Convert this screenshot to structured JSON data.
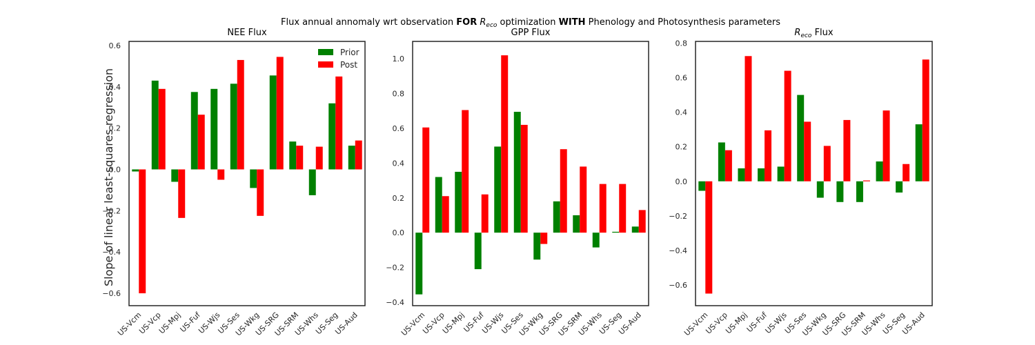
{
  "figure": {
    "suptitle": {
      "pre": "Flux annual annomaly wrt observation ",
      "bold1": "FOR",
      "math_base": "R",
      "math_sub": "eco",
      "mid": " optimization ",
      "bold2": "WITH",
      "post": " Phenology and Photosynthesis parameters"
    },
    "ylabel": "Slope of linear least-squares regression"
  },
  "colors": {
    "prior": "#008000",
    "post": "#ff0000"
  },
  "chart_data": [
    {
      "type": "bar",
      "title": "NEE Flux",
      "categories": [
        "US-Vcm",
        "US-Vcp",
        "US-Mpj",
        "US-Fuf",
        "US-Wjs",
        "US-Ses",
        "US-Wkg",
        "US-SRG",
        "US-SRM",
        "US-Whs",
        "US-Seg",
        "US-Aud"
      ],
      "series": [
        {
          "name": "Prior",
          "values": [
            -0.01,
            0.43,
            -0.06,
            0.375,
            0.39,
            0.415,
            -0.09,
            0.455,
            0.135,
            -0.125,
            0.32,
            0.115
          ]
        },
        {
          "name": "Post",
          "values": [
            -0.6,
            0.39,
            -0.235,
            0.265,
            -0.05,
            0.53,
            -0.225,
            0.545,
            0.115,
            0.11,
            0.45,
            0.14
          ]
        }
      ],
      "ylim": [
        -0.66,
        0.62
      ],
      "yticks": [
        -0.6,
        -0.4,
        -0.2,
        0.0,
        0.2,
        0.4,
        0.6
      ],
      "ytick_labels": [
        "−0.6",
        "−0.4",
        "−0.2",
        "0.0",
        "0.2",
        "0.4",
        "0.6"
      ],
      "legend": "top-right",
      "grid": false
    },
    {
      "type": "bar",
      "title": "GPP Flux",
      "categories": [
        "US-Vcm",
        "US-Vcp",
        "US-Mpj",
        "US-Fuf",
        "US-Wjs",
        "US-Ses",
        "US-Wkg",
        "US-SRG",
        "US-SRM",
        "US-Whs",
        "US-Seg",
        "US-Aud"
      ],
      "series": [
        {
          "name": "Prior",
          "values": [
            -0.355,
            0.32,
            0.35,
            -0.21,
            0.495,
            0.695,
            -0.155,
            0.18,
            0.1,
            -0.085,
            0.005,
            0.035
          ]
        },
        {
          "name": "Post",
          "values": [
            0.605,
            0.21,
            0.705,
            0.22,
            1.02,
            0.62,
            -0.065,
            0.48,
            0.38,
            0.28,
            0.28,
            0.13
          ]
        }
      ],
      "ylim": [
        -0.42,
        1.1
      ],
      "yticks": [
        -0.4,
        -0.2,
        0.0,
        0.2,
        0.4,
        0.6,
        0.8,
        1.0
      ],
      "ytick_labels": [
        "−0.4",
        "−0.2",
        "0.0",
        "0.2",
        "0.4",
        "0.6",
        "0.8",
        "1.0"
      ],
      "legend": "none",
      "grid": false
    },
    {
      "type": "bar",
      "title_math_base": "R",
      "title_math_sub": "eco",
      "title_suffix": " Flux",
      "categories": [
        "US-Vcm",
        "US-Vcp",
        "US-Mpj",
        "US-Fuf",
        "US-Wjs",
        "US-Ses",
        "US-Wkg",
        "US-SRG",
        "US-SRM",
        "US-Whs",
        "US-Seg",
        "US-Aud"
      ],
      "series": [
        {
          "name": "Prior",
          "values": [
            -0.055,
            0.225,
            0.075,
            0.075,
            0.085,
            0.5,
            -0.095,
            -0.12,
            -0.12,
            0.115,
            -0.065,
            0.33
          ]
        },
        {
          "name": "Post",
          "values": [
            -0.65,
            0.18,
            0.725,
            0.295,
            0.64,
            0.345,
            0.205,
            0.355,
            0.005,
            0.41,
            0.1,
            0.705
          ]
        }
      ],
      "ylim": [
        -0.72,
        0.81
      ],
      "yticks": [
        -0.6,
        -0.4,
        -0.2,
        0.0,
        0.2,
        0.4,
        0.6,
        0.8
      ],
      "ytick_labels": [
        "−0.6",
        "−0.4",
        "−0.2",
        "0.0",
        "0.2",
        "0.4",
        "0.6",
        "0.8"
      ],
      "legend": "none",
      "grid": false
    }
  ]
}
